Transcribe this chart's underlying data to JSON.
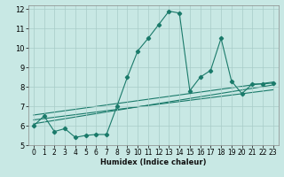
{
  "xlabel": "Humidex (Indice chaleur)",
  "xlim": [
    -0.5,
    23.5
  ],
  "ylim": [
    5,
    12.2
  ],
  "yticks": [
    5,
    6,
    7,
    8,
    9,
    10,
    11,
    12
  ],
  "xticks": [
    0,
    1,
    2,
    3,
    4,
    5,
    6,
    7,
    8,
    9,
    10,
    11,
    12,
    13,
    14,
    15,
    16,
    17,
    18,
    19,
    20,
    21,
    22,
    23
  ],
  "background_color": "#c8e8e4",
  "grid_color": "#a8ccc8",
  "line_color": "#1a7a6a",
  "series1_x": [
    0,
    1,
    2,
    3,
    4,
    5,
    6,
    7,
    8,
    9,
    10,
    11,
    12,
    13,
    14,
    15,
    16,
    17,
    18,
    19,
    20,
    21,
    22,
    23
  ],
  "series1_y": [
    6.0,
    6.5,
    5.7,
    5.85,
    5.4,
    5.5,
    5.55,
    5.55,
    7.0,
    8.5,
    9.85,
    10.5,
    11.2,
    11.9,
    11.8,
    7.8,
    8.5,
    8.85,
    10.5,
    8.3,
    7.65,
    8.15,
    8.15,
    8.2
  ],
  "line1_x": [
    0,
    23
  ],
  "line1_y": [
    6.1,
    8.1
  ],
  "line2_x": [
    0,
    23
  ],
  "line2_y": [
    6.3,
    7.85
  ],
  "line3_x": [
    0,
    23
  ],
  "line3_y": [
    6.55,
    8.25
  ]
}
